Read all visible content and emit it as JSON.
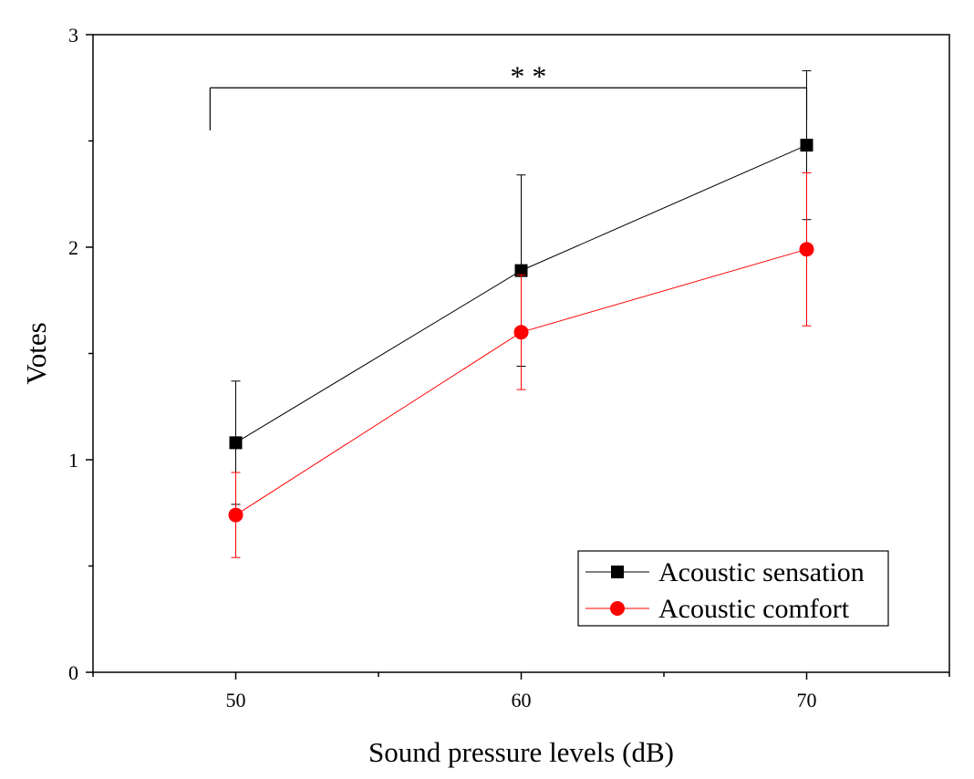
{
  "chart_data": {
    "type": "line",
    "title": "",
    "xlabel": "Sound pressure levels (dB)",
    "ylabel": "Votes",
    "xlim": [
      45,
      75
    ],
    "ylim": [
      0,
      3
    ],
    "x_ticks": [
      50,
      60,
      70
    ],
    "x_tick_labels": [
      "50",
      "60",
      "70"
    ],
    "y_ticks": [
      0,
      1,
      2,
      3
    ],
    "y_tick_labels": [
      "0",
      "1",
      "2",
      "3"
    ],
    "x": [
      50,
      60,
      70
    ],
    "series": [
      {
        "name": "Acoustic sensation",
        "color": "#000000",
        "marker": "square",
        "values": [
          1.08,
          1.89,
          2.48
        ],
        "error": [
          0.29,
          0.45,
          0.35
        ]
      },
      {
        "name": "Acoustic comfort",
        "color": "#ff0000",
        "marker": "circle",
        "values": [
          0.74,
          1.6,
          1.99
        ],
        "error": [
          0.2,
          0.27,
          0.36
        ]
      }
    ],
    "annotations": [
      {
        "type": "significance-bracket",
        "label": "* *",
        "x_start": 49.1,
        "x_end": 70,
        "y_level": 2.75,
        "left_drop_to": 2.55,
        "right_drop_to": 2.6
      }
    ],
    "legend": {
      "position": "bottom-right",
      "entries": [
        "Acoustic sensation",
        "Acoustic comfort"
      ]
    },
    "grid": false
  }
}
